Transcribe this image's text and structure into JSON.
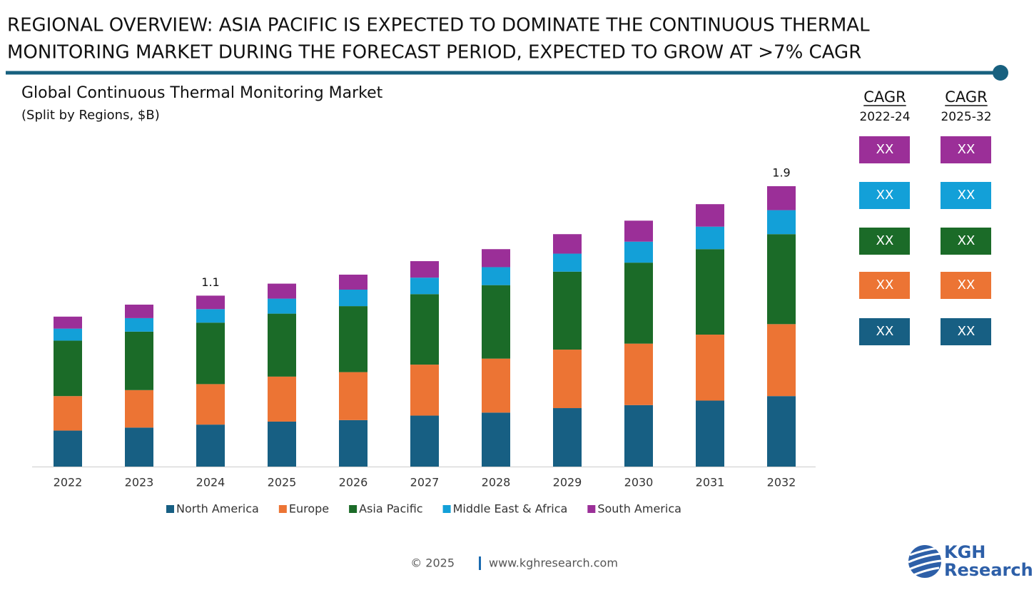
{
  "header": {
    "title_lines": [
      "REGIONAL OVERVIEW: ASIA PACIFIC IS EXPECTED TO DOMINATE THE CONTINUOUS THERMAL",
      "MONITORING MARKET DURING THE FORECAST PERIOD, EXPECTED TO GROW AT >7% CAGR"
    ]
  },
  "chart_data": {
    "type": "stacked_bar",
    "title": "Global Continuous Thermal Monitoring Market",
    "subtitle": "(Split by Regions, $B)",
    "categories": [
      "2022",
      "2023",
      "2024",
      "2025",
      "2026",
      "2027",
      "2028",
      "2029",
      "2030",
      "2031",
      "2032"
    ],
    "series": [
      {
        "name": "North America",
        "color": "#175f83",
        "values": [
          0.24,
          0.26,
          0.28,
          0.3,
          0.31,
          0.34,
          0.36,
          0.39,
          0.41,
          0.44,
          0.47
        ]
      },
      {
        "name": "Europe",
        "color": "#ec7434",
        "values": [
          0.23,
          0.25,
          0.27,
          0.3,
          0.32,
          0.34,
          0.36,
          0.39,
          0.41,
          0.44,
          0.48
        ]
      },
      {
        "name": "Asia Pacific",
        "color": "#1b6b28",
        "values": [
          0.37,
          0.39,
          0.41,
          0.42,
          0.44,
          0.47,
          0.49,
          0.52,
          0.54,
          0.57,
          0.6
        ]
      },
      {
        "name": "Middle East & Africa",
        "color": "#13a0d8",
        "values": [
          0.08,
          0.09,
          0.09,
          0.1,
          0.11,
          0.11,
          0.12,
          0.12,
          0.14,
          0.15,
          0.16
        ]
      },
      {
        "name": "South America",
        "color": "#9b2f98",
        "values": [
          0.08,
          0.09,
          0.09,
          0.1,
          0.1,
          0.11,
          0.12,
          0.13,
          0.14,
          0.15,
          0.16
        ]
      }
    ],
    "annotations": [
      {
        "category": "2024",
        "text": "1.1"
      },
      {
        "category": "2032",
        "text": "1.9"
      }
    ],
    "ylim": [
      0,
      2.16
    ],
    "legend": "bottom"
  },
  "cagr_table": {
    "columns": [
      {
        "title": "CAGR",
        "period": "2022-24",
        "cells": [
          "XX",
          "XX",
          "XX",
          "XX",
          "XX"
        ]
      },
      {
        "title": "CAGR",
        "period": "2025-32",
        "cells": [
          "XX",
          "XX",
          "XX",
          "XX",
          "XX"
        ]
      }
    ]
  },
  "footer": {
    "copyright": "© 2025",
    "url": "www.kghresearch.com",
    "logo": [
      "KGH",
      "Research"
    ]
  }
}
